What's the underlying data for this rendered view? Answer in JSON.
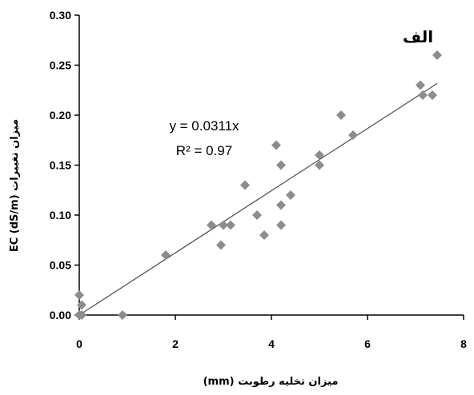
{
  "chart_data": {
    "type": "scatter",
    "title": "",
    "panel_label": "الف",
    "xlabel": "میزان تخلیه رطوبت (mm)",
    "ylabel": "میزان تغییرات EC (dS/m)",
    "xlim": [
      0,
      8
    ],
    "ylim": [
      0,
      0.3
    ],
    "xticks": [
      0,
      2,
      4,
      6,
      8
    ],
    "xtick_labels": [
      "0",
      "2",
      "4",
      "6",
      "8"
    ],
    "yticks": [
      0,
      0.05,
      0.1,
      0.15,
      0.2,
      0.25,
      0.3
    ],
    "ytick_labels": [
      "0.00",
      "0.05",
      "0.10",
      "0.15",
      "0.20",
      "0.25",
      "0.30"
    ],
    "grid": false,
    "legend": "none",
    "marker": "diamond",
    "marker_color": "#8c8c8c",
    "trendline": {
      "slope": 0.0311,
      "intercept": 0,
      "x_range": [
        0,
        7.45
      ],
      "color": "#555555"
    },
    "annotations": [
      "y = 0.0311x",
      "R² = 0.97"
    ],
    "points": [
      {
        "x": 0.0,
        "y": 0.02
      },
      {
        "x": 0.05,
        "y": 0.01
      },
      {
        "x": 0.0,
        "y": 0.0
      },
      {
        "x": 0.05,
        "y": 0.0
      },
      {
        "x": 0.9,
        "y": 0.0
      },
      {
        "x": 1.8,
        "y": 0.06
      },
      {
        "x": 2.75,
        "y": 0.09
      },
      {
        "x": 2.95,
        "y": 0.07
      },
      {
        "x": 3.0,
        "y": 0.09
      },
      {
        "x": 3.15,
        "y": 0.09
      },
      {
        "x": 3.45,
        "y": 0.13
      },
      {
        "x": 3.7,
        "y": 0.1
      },
      {
        "x": 3.85,
        "y": 0.08
      },
      {
        "x": 4.1,
        "y": 0.17
      },
      {
        "x": 4.2,
        "y": 0.15
      },
      {
        "x": 4.2,
        "y": 0.11
      },
      {
        "x": 4.2,
        "y": 0.09
      },
      {
        "x": 4.4,
        "y": 0.12
      },
      {
        "x": 5.0,
        "y": 0.16
      },
      {
        "x": 5.0,
        "y": 0.15
      },
      {
        "x": 5.45,
        "y": 0.2
      },
      {
        "x": 5.7,
        "y": 0.18
      },
      {
        "x": 7.1,
        "y": 0.23
      },
      {
        "x": 7.15,
        "y": 0.22
      },
      {
        "x": 7.35,
        "y": 0.22
      },
      {
        "x": 7.45,
        "y": 0.26
      }
    ]
  }
}
